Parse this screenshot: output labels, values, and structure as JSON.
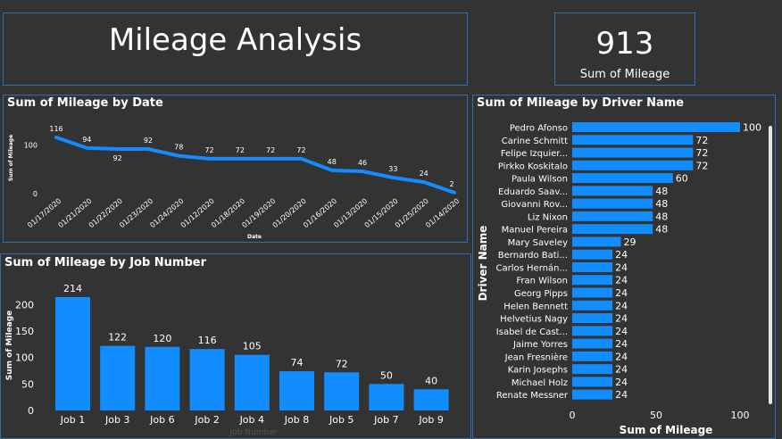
{
  "header": {
    "title": "Mileage Analysis"
  },
  "kpi": {
    "value": "913",
    "label": "Sum of Mileage"
  },
  "colors": {
    "bar": "#118dff",
    "panel_border": "#2f6fb3",
    "background": "#333333"
  },
  "chart_data": [
    {
      "type": "line",
      "title": "Sum of Mileage by Date",
      "xlabel": "Date",
      "ylabel": "Sum of Mileage",
      "ylim": [
        0,
        116
      ],
      "y_ticks": [
        0,
        100
      ],
      "categories": [
        "01/17/2020",
        "01/21/2020",
        "01/22/2020",
        "01/23/2020",
        "01/24/2020",
        "01/12/2020",
        "01/18/2020",
        "01/19/2020",
        "01/20/2020",
        "01/16/2020",
        "01/13/2020",
        "01/15/2020",
        "01/25/2020",
        "01/14/2020"
      ],
      "values": [
        116,
        94,
        92,
        92,
        78,
        72,
        72,
        72,
        72,
        48,
        46,
        33,
        24,
        2
      ],
      "data_labels": [
        "116",
        "94",
        "92",
        "92",
        "78",
        "72",
        "72",
        "72",
        "72",
        "48",
        "46",
        "33",
        "24",
        "2"
      ]
    },
    {
      "type": "bar",
      "title": "Sum of Mileage by Job Number",
      "xlabel": "Job Number",
      "ylabel": "Sum of Mileage",
      "ylim": [
        0,
        214
      ],
      "y_ticks": [
        0,
        50,
        100,
        150,
        200
      ],
      "categories": [
        "Job 1",
        "Job 3",
        "Job 6",
        "Job 2",
        "Job 4",
        "Job 8",
        "Job 5",
        "Job 7",
        "Job 9"
      ],
      "values": [
        214,
        122,
        120,
        116,
        105,
        74,
        72,
        50,
        40
      ]
    },
    {
      "type": "bar",
      "orientation": "horizontal",
      "title": "Sum of Mileage by Driver Name",
      "xlabel": "Sum of Mileage",
      "ylabel": "Driver Name",
      "xlim": [
        0,
        100
      ],
      "x_ticks": [
        0,
        50,
        100
      ],
      "categories": [
        "Pedro Afonso",
        "Carine Schmitt",
        "Felipe Izquier...",
        "Pirkko Koskitalo",
        "Paula Wilson",
        "Eduardo Saav...",
        "Giovanni Rov...",
        "Liz Nixon",
        "Manuel Pereira",
        "Mary Saveley",
        "Bernardo Bati...",
        "Carlos Hernán...",
        "Fran Wilson",
        "Georg Pipps",
        "Helen Bennett",
        "Helvetius Nagy",
        "Isabel de Cast...",
        "Jaime Yorres",
        "Jean Fresnière",
        "Karin Josephs",
        "Michael Holz",
        "Renate Messner"
      ],
      "values": [
        100,
        72,
        72,
        72,
        60,
        48,
        48,
        48,
        48,
        29,
        24,
        24,
        24,
        24,
        24,
        24,
        24,
        24,
        24,
        24,
        24,
        24
      ]
    }
  ]
}
